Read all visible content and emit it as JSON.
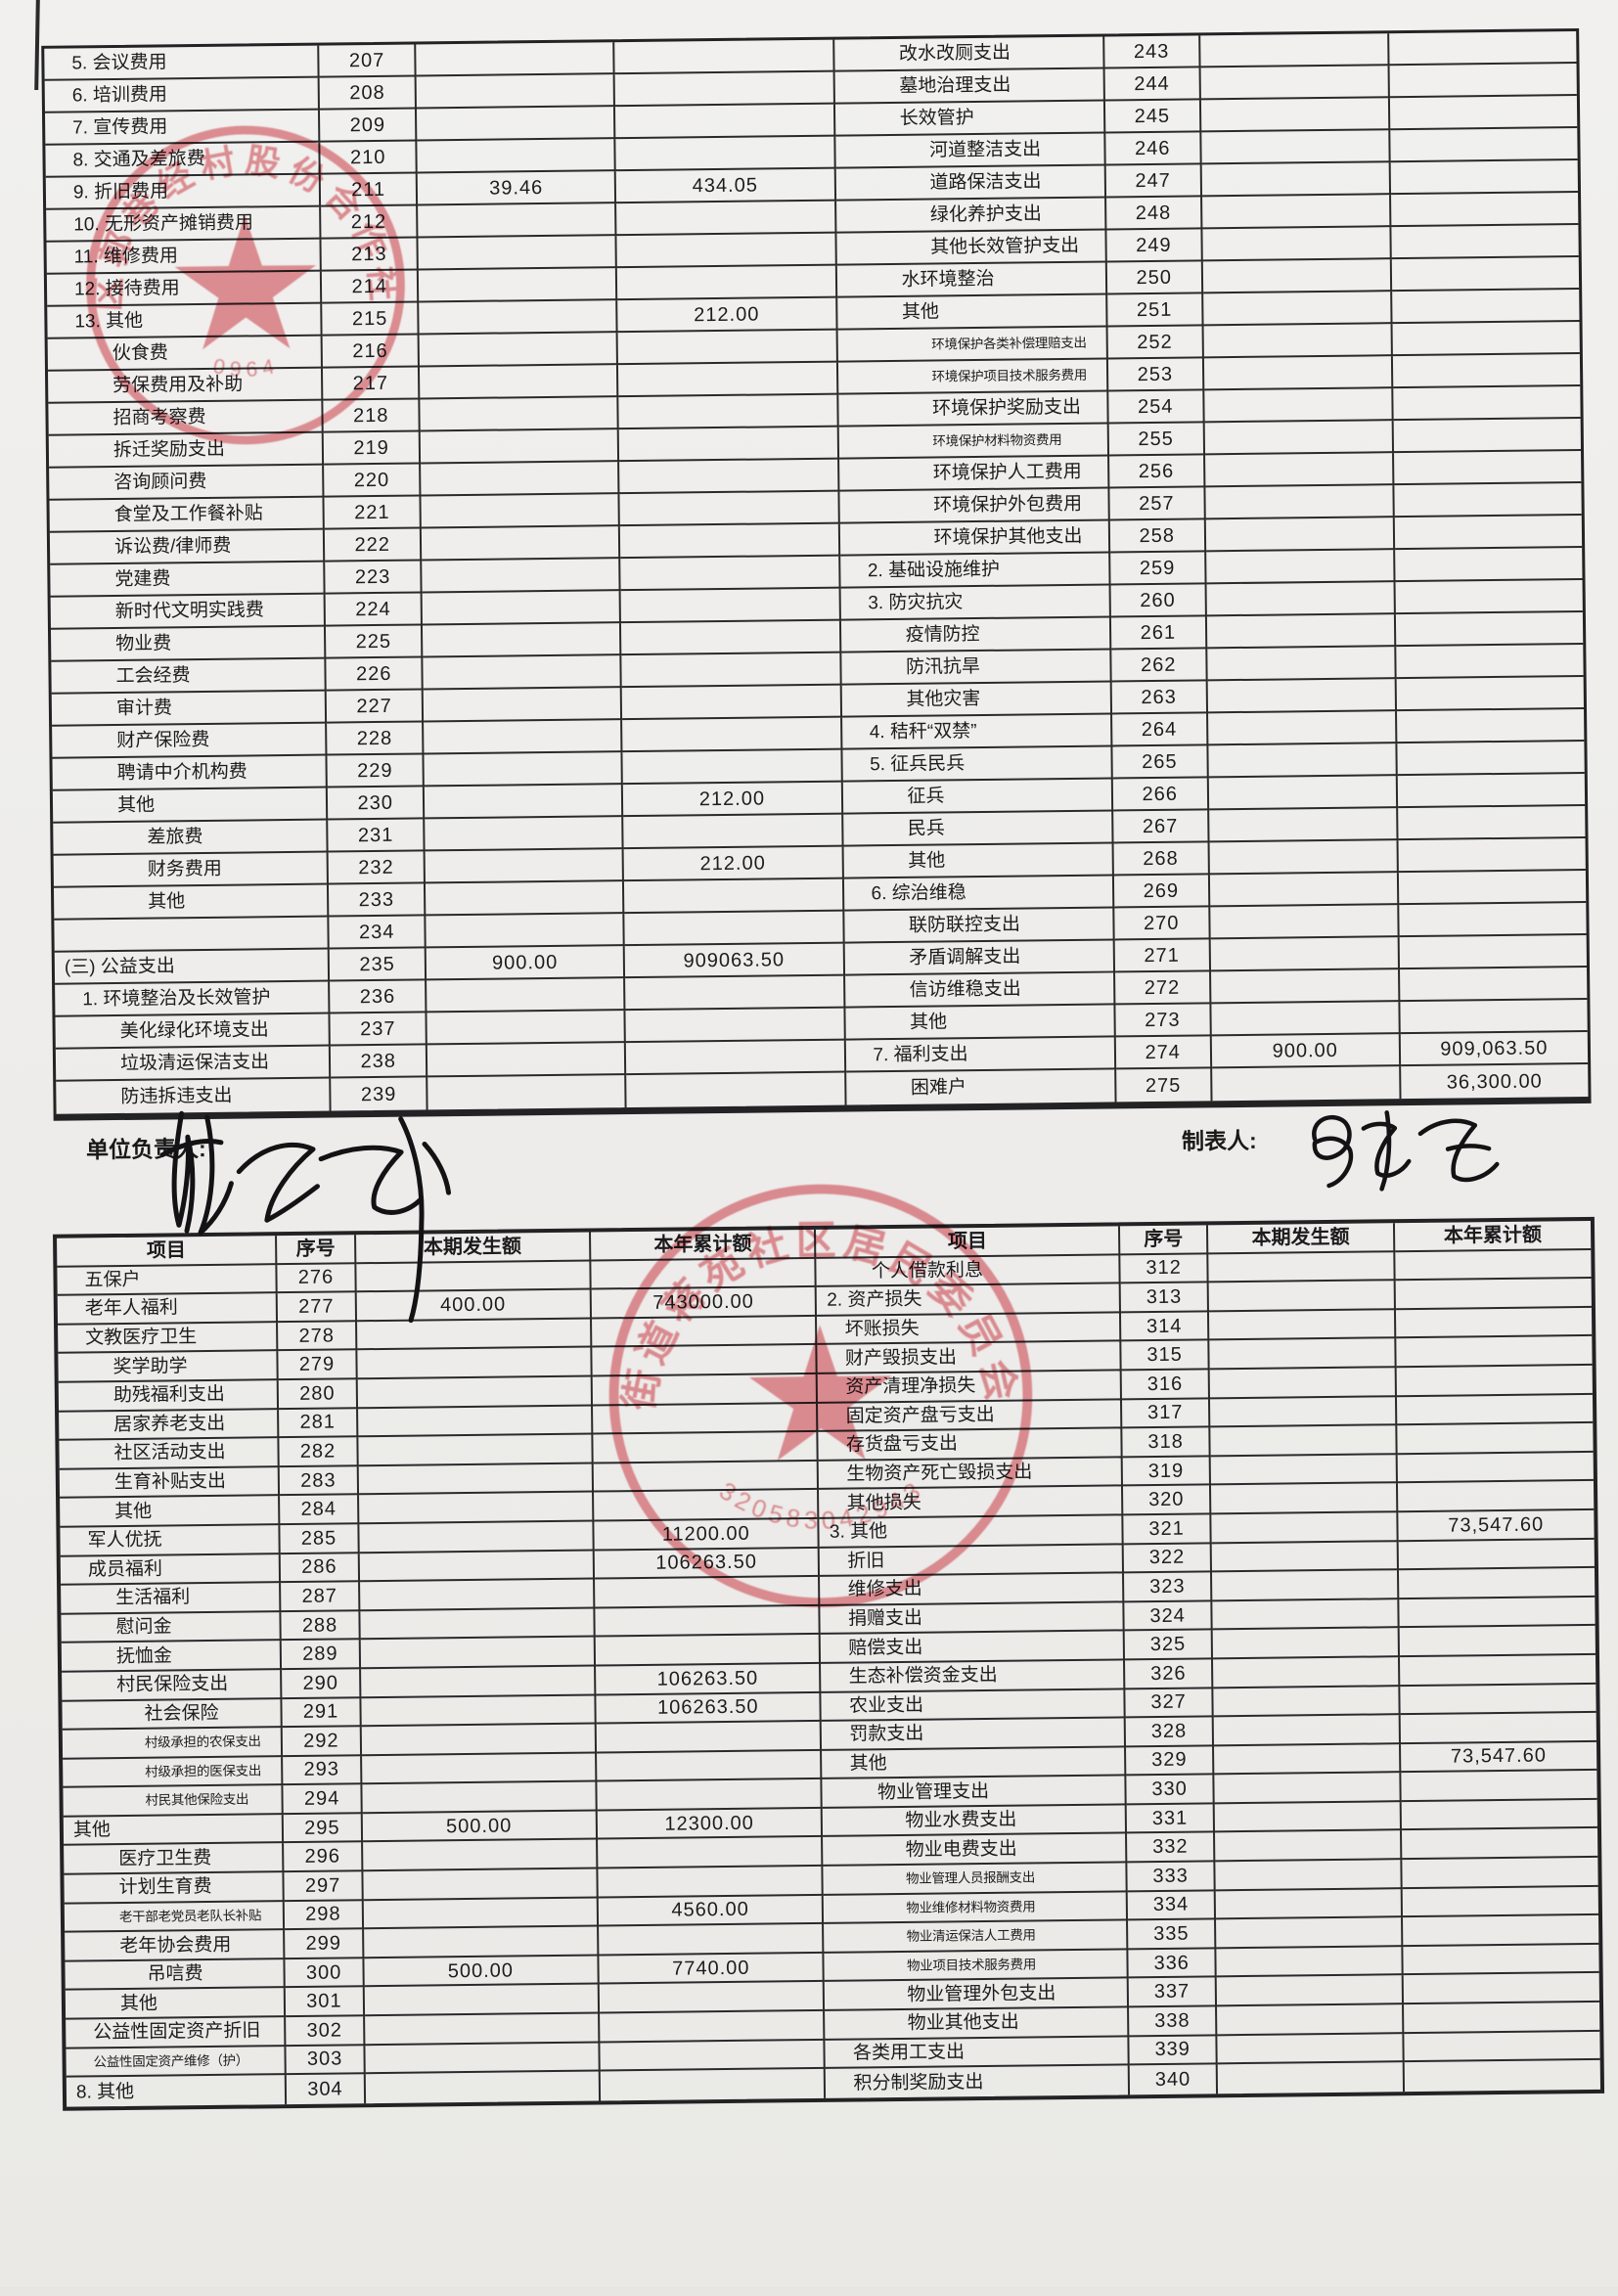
{
  "document": {
    "type": "村(社区)收支明细表 — 支出科目续页",
    "language": "zh-CN"
  },
  "headers": {
    "item": "项目",
    "seq": "序号",
    "current": "本期发生额",
    "cumulative": "本年累计额"
  },
  "footer": {
    "responsible_label": "单位负责人:",
    "preparer_label": "制表人:"
  },
  "stamps": [
    {
      "name": "village-cooperative-seal",
      "shape": "round-red-star",
      "arc_text": "区郭巷经村股份合作社",
      "code": "0964",
      "color": "#c93a43"
    },
    {
      "name": "community-committee-seal",
      "shape": "round-red-star",
      "arc_text": "街道蒋苑社区居民委员会",
      "code": "320583042943",
      "color": "#c93a43"
    }
  ],
  "table_top": {
    "has_header": false,
    "rows": [
      [
        "5. 会议费用",
        1,
        0,
        "207",
        "",
        "",
        "改水改厕支出",
        2,
        0,
        "243",
        "",
        ""
      ],
      [
        "6. 培训费用",
        1,
        0,
        "208",
        "",
        "",
        "墓地治理支出",
        2,
        0,
        "244",
        "",
        ""
      ],
      [
        "7. 宣传费用",
        1,
        0,
        "209",
        "",
        "",
        "长效管护",
        2,
        0,
        "245",
        "",
        ""
      ],
      [
        "8. 交通及差旅费",
        1,
        0,
        "210",
        "",
        "",
        "河道整洁支出",
        3,
        0,
        "246",
        "",
        ""
      ],
      [
        "9. 折旧费用",
        1,
        0,
        "211",
        "39.46",
        "434.05",
        "道路保洁支出",
        3,
        0,
        "247",
        "",
        ""
      ],
      [
        "10. 无形资产摊销费用",
        1,
        0,
        "212",
        "",
        "",
        "绿化养护支出",
        3,
        0,
        "248",
        "",
        ""
      ],
      [
        "11. 维修费用",
        1,
        0,
        "213",
        "",
        "",
        "其他长效管护支出",
        3,
        0,
        "249",
        "",
        ""
      ],
      [
        "12. 接待费用",
        1,
        0,
        "214",
        "",
        "",
        "水环境整治",
        2,
        0,
        "250",
        "",
        ""
      ],
      [
        "13. 其他",
        1,
        0,
        "215",
        "",
        "212.00",
        "其他",
        2,
        0,
        "251",
        "",
        ""
      ],
      [
        "伙食费",
        2,
        0,
        "216",
        "",
        "",
        "环境保护各类补偿理赔支出",
        3,
        1,
        "252",
        "",
        ""
      ],
      [
        "劳保费用及补助",
        2,
        0,
        "217",
        "",
        "",
        "环境保护项目技术服务费用",
        3,
        1,
        "253",
        "",
        ""
      ],
      [
        "招商考察费",
        2,
        0,
        "218",
        "",
        "",
        "环境保护奖励支出",
        3,
        0,
        "254",
        "",
        ""
      ],
      [
        "拆迁奖励支出",
        2,
        0,
        "219",
        "",
        "",
        "环境保护材料物资费用",
        3,
        1,
        "255",
        "",
        ""
      ],
      [
        "咨询顾问费",
        2,
        0,
        "220",
        "",
        "",
        "环境保护人工费用",
        3,
        0,
        "256",
        "",
        ""
      ],
      [
        "食堂及工作餐补贴",
        2,
        0,
        "221",
        "",
        "",
        "环境保护外包费用",
        3,
        0,
        "257",
        "",
        ""
      ],
      [
        "诉讼费/律师费",
        2,
        0,
        "222",
        "",
        "",
        "环境保护其他支出",
        3,
        0,
        "258",
        "",
        ""
      ],
      [
        "党建费",
        2,
        0,
        "223",
        "",
        "",
        "2. 基础设施维护",
        1,
        0,
        "259",
        "",
        ""
      ],
      [
        "新时代文明实践费",
        2,
        0,
        "224",
        "",
        "",
        "3. 防灾抗灾",
        1,
        0,
        "260",
        "",
        ""
      ],
      [
        "物业费",
        2,
        0,
        "225",
        "",
        "",
        "疫情防控",
        2,
        0,
        "261",
        "",
        ""
      ],
      [
        "工会经费",
        2,
        0,
        "226",
        "",
        "",
        "防汛抗旱",
        2,
        0,
        "262",
        "",
        ""
      ],
      [
        "审计费",
        2,
        0,
        "227",
        "",
        "",
        "其他灾害",
        2,
        0,
        "263",
        "",
        ""
      ],
      [
        "财产保险费",
        2,
        0,
        "228",
        "",
        "",
        "4. 秸秆“双禁”",
        1,
        0,
        "264",
        "",
        ""
      ],
      [
        "聘请中介机构费",
        2,
        0,
        "229",
        "",
        "",
        "5. 征兵民兵",
        1,
        0,
        "265",
        "",
        ""
      ],
      [
        "其他",
        2,
        0,
        "230",
        "",
        "212.00",
        "征兵",
        2,
        0,
        "266",
        "",
        ""
      ],
      [
        "差旅费",
        3,
        0,
        "231",
        "",
        "",
        "民兵",
        2,
        0,
        "267",
        "",
        ""
      ],
      [
        "财务费用",
        3,
        0,
        "232",
        "",
        "212.00",
        "其他",
        2,
        0,
        "268",
        "",
        ""
      ],
      [
        "其他",
        3,
        0,
        "233",
        "",
        "",
        "6. 综治维稳",
        1,
        0,
        "269",
        "",
        ""
      ],
      [
        "",
        0,
        0,
        "234",
        "",
        "",
        "联防联控支出",
        2,
        0,
        "270",
        "",
        ""
      ],
      [
        "(三) 公益支出",
        0,
        0,
        "235",
        "900.00",
        "909063.50",
        "矛盾调解支出",
        2,
        0,
        "271",
        "",
        ""
      ],
      [
        "1. 环境整治及长效管护",
        1,
        0,
        "236",
        "",
        "",
        "信访维稳支出",
        2,
        0,
        "272",
        "",
        ""
      ],
      [
        "美化绿化环境支出",
        2,
        0,
        "237",
        "",
        "",
        "其他",
        2,
        0,
        "273",
        "",
        ""
      ],
      [
        "垃圾清运保洁支出",
        2,
        0,
        "238",
        "",
        "",
        "7. 福利支出",
        1,
        0,
        "274",
        "900.00",
        "909,063.50"
      ],
      [
        "防违拆违支出",
        2,
        0,
        "239",
        "",
        "",
        "困难户",
        2,
        0,
        "275",
        "",
        "36,300.00"
      ]
    ]
  },
  "table_bottom": {
    "has_header": true,
    "rows": [
      [
        "五保户",
        1,
        0,
        "276",
        "",
        "",
        "个人借款利息",
        2,
        0,
        "312",
        "",
        ""
      ],
      [
        "老年人福利",
        1,
        0,
        "277",
        "400.00",
        "743000.00",
        "2. 资产损失",
        0,
        0,
        "313",
        "",
        ""
      ],
      [
        "文教医疗卫生",
        1,
        0,
        "278",
        "",
        "",
        "坏账损失",
        1,
        0,
        "314",
        "",
        ""
      ],
      [
        "奖学助学",
        2,
        0,
        "279",
        "",
        "",
        "财产毁损支出",
        1,
        0,
        "315",
        "",
        ""
      ],
      [
        "助残福利支出",
        2,
        0,
        "280",
        "",
        "",
        "资产清理净损失",
        1,
        0,
        "316",
        "",
        ""
      ],
      [
        "居家养老支出",
        2,
        0,
        "281",
        "",
        "",
        "固定资产盘亏支出",
        1,
        0,
        "317",
        "",
        ""
      ],
      [
        "社区活动支出",
        2,
        0,
        "282",
        "",
        "",
        "存货盘亏支出",
        1,
        0,
        "318",
        "",
        ""
      ],
      [
        "生育补贴支出",
        2,
        0,
        "283",
        "",
        "",
        "生物资产死亡毁损支出",
        1,
        0,
        "319",
        "",
        ""
      ],
      [
        "其他",
        2,
        0,
        "284",
        "",
        "",
        "其他损失",
        1,
        0,
        "320",
        "",
        ""
      ],
      [
        "军人优抚",
        1,
        0,
        "285",
        "",
        "11200.00",
        "3. 其他",
        0,
        0,
        "321",
        "",
        "73,547.60"
      ],
      [
        "成员福利",
        1,
        0,
        "286",
        "",
        "106263.50",
        "折旧",
        1,
        0,
        "322",
        "",
        ""
      ],
      [
        "生活福利",
        2,
        0,
        "287",
        "",
        "",
        "维修支出",
        1,
        0,
        "323",
        "",
        ""
      ],
      [
        "慰问金",
        2,
        0,
        "288",
        "",
        "",
        "捐赠支出",
        1,
        0,
        "324",
        "",
        ""
      ],
      [
        "抚恤金",
        2,
        0,
        "289",
        "",
        "",
        "赔偿支出",
        1,
        0,
        "325",
        "",
        ""
      ],
      [
        "村民保险支出",
        2,
        0,
        "290",
        "",
        "106263.50",
        "生态补偿资金支出",
        1,
        0,
        "326",
        "",
        ""
      ],
      [
        "社会保险",
        3,
        0,
        "291",
        "",
        "106263.50",
        "农业支出",
        1,
        0,
        "327",
        "",
        ""
      ],
      [
        "村级承担的农保支出",
        3,
        1,
        "292",
        "",
        "",
        "罚款支出",
        1,
        0,
        "328",
        "",
        ""
      ],
      [
        "村级承担的医保支出",
        3,
        1,
        "293",
        "",
        "",
        "其他",
        1,
        0,
        "329",
        "",
        "73,547.60"
      ],
      [
        "村民其他保险支出",
        3,
        1,
        "294",
        "",
        "",
        "物业管理支出",
        2,
        0,
        "330",
        "",
        ""
      ],
      [
        "其他",
        0,
        0,
        "295",
        "500.00",
        "12300.00",
        "物业水费支出",
        3,
        0,
        "331",
        "",
        ""
      ],
      [
        "医疗卫生费",
        2,
        0,
        "296",
        "",
        "",
        "物业电费支出",
        3,
        0,
        "332",
        "",
        ""
      ],
      [
        "计划生育费",
        2,
        0,
        "297",
        "",
        "",
        "物业管理人员报酬支出",
        3,
        1,
        "333",
        "",
        ""
      ],
      [
        "老干部老党员老队长补贴",
        2,
        1,
        "298",
        "",
        "4560.00",
        "物业维修材料物资费用",
        3,
        1,
        "334",
        "",
        ""
      ],
      [
        "老年协会费用",
        2,
        0,
        "299",
        "",
        "",
        "物业清运保洁人工费用",
        3,
        1,
        "335",
        "",
        ""
      ],
      [
        "吊唁费",
        3,
        0,
        "300",
        "500.00",
        "7740.00",
        "物业项目技术服务费用",
        3,
        1,
        "336",
        "",
        ""
      ],
      [
        "其他",
        2,
        0,
        "301",
        "",
        "",
        "物业管理外包支出",
        3,
        0,
        "337",
        "",
        ""
      ],
      [
        "公益性固定资产折旧",
        1,
        0,
        "302",
        "",
        "",
        "物业其他支出",
        3,
        0,
        "338",
        "",
        ""
      ],
      [
        "公益性固定资产维修（护）",
        1,
        1,
        "303",
        "",
        "",
        "各类用工支出",
        1,
        0,
        "339",
        "",
        ""
      ],
      [
        "8. 其他",
        0,
        0,
        "304",
        "",
        "",
        "积分制奖励支出",
        1,
        0,
        "340",
        "",
        ""
      ]
    ]
  }
}
